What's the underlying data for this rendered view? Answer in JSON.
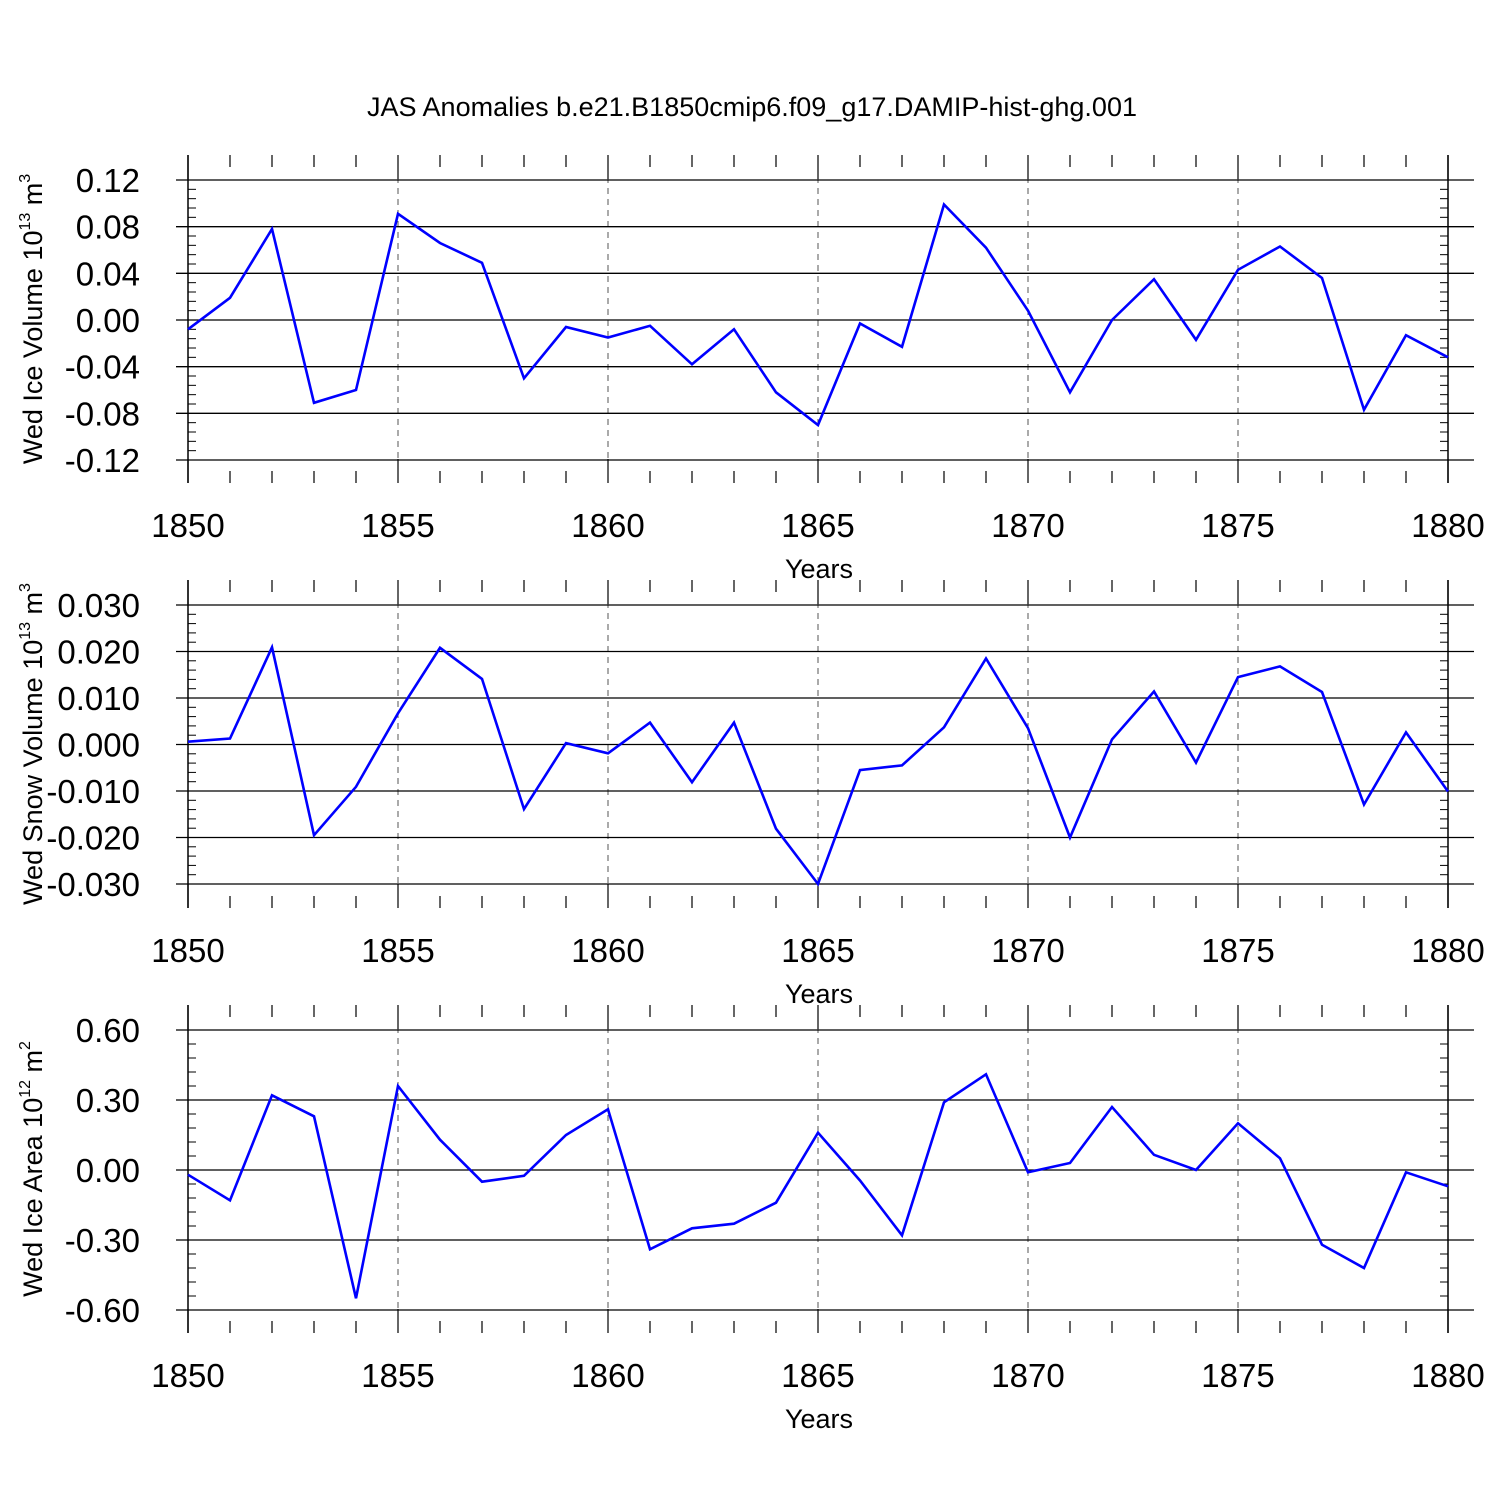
{
  "chart_data": {
    "type": "line",
    "title": "JAS Anomalies b.e21.B1850cmip6.f09_g17.DAMIP-hist-ghg.001",
    "line_color": "#0000ff",
    "panels": [
      {
        "type": "line",
        "ylabel_base": "Wed Ice Volume 10",
        "ylabel_exp": "13",
        "ylabel_unit": " m",
        "ylabel_unit_exp": "3",
        "xlabel": "Years",
        "xlim": [
          1850,
          1880
        ],
        "ylim": [
          -0.12,
          0.12
        ],
        "yticks": [
          -0.12,
          -0.08,
          -0.04,
          0.0,
          0.04,
          0.08,
          0.12
        ],
        "ytick_labels": [
          "-0.12",
          "-0.08",
          "-0.04",
          "0.00",
          "0.04",
          "0.08",
          "0.12"
        ],
        "xticks": [
          1850,
          1855,
          1860,
          1865,
          1870,
          1875,
          1880
        ],
        "xtick_labels": [
          "1850",
          "1855",
          "1860",
          "1865",
          "1870",
          "1875",
          "1880"
        ],
        "x": [
          1850,
          1851,
          1852,
          1853,
          1854,
          1855,
          1856,
          1857,
          1858,
          1859,
          1860,
          1861,
          1862,
          1863,
          1864,
          1865,
          1866,
          1867,
          1868,
          1869,
          1870,
          1871,
          1872,
          1873,
          1874,
          1875,
          1876,
          1877,
          1878,
          1879,
          1880
        ],
        "values": [
          -0.008,
          0.019,
          0.078,
          -0.071,
          -0.06,
          0.091,
          0.066,
          0.049,
          -0.05,
          -0.006,
          -0.015,
          -0.005,
          -0.038,
          -0.008,
          -0.062,
          -0.09,
          -0.003,
          -0.023,
          0.099,
          0.062,
          0.008,
          -0.062,
          0.0,
          0.035,
          -0.017,
          0.043,
          0.063,
          0.036,
          -0.077,
          -0.013,
          -0.032
        ]
      },
      {
        "type": "line",
        "ylabel_base": "Wed Snow Volume 10",
        "ylabel_exp": "13",
        "ylabel_unit": " m",
        "ylabel_unit_exp": "3",
        "xlabel": "Years",
        "xlim": [
          1850,
          1880
        ],
        "ylim": [
          -0.03,
          0.03
        ],
        "yticks": [
          -0.03,
          -0.02,
          -0.01,
          0.0,
          0.01,
          0.02,
          0.03
        ],
        "ytick_labels": [
          "-0.030",
          "-0.020",
          "-0.010",
          "0.000",
          "0.010",
          "0.020",
          "0.030"
        ],
        "xticks": [
          1850,
          1855,
          1860,
          1865,
          1870,
          1875,
          1880
        ],
        "xtick_labels": [
          "1850",
          "1855",
          "1860",
          "1865",
          "1870",
          "1875",
          "1880"
        ],
        "x": [
          1850,
          1851,
          1852,
          1853,
          1854,
          1855,
          1856,
          1857,
          1858,
          1859,
          1860,
          1861,
          1862,
          1863,
          1864,
          1865,
          1866,
          1867,
          1868,
          1869,
          1870,
          1871,
          1872,
          1873,
          1874,
          1875,
          1876,
          1877,
          1878,
          1879,
          1880
        ],
        "values": [
          0.0006,
          0.0013,
          0.0209,
          -0.0195,
          -0.0091,
          0.0067,
          0.0208,
          0.0141,
          -0.0139,
          0.0003,
          -0.0019,
          0.0047,
          -0.0081,
          0.0047,
          -0.0181,
          -0.03,
          -0.0055,
          -0.0045,
          0.0037,
          0.0185,
          0.0035,
          -0.02,
          0.0011,
          0.0114,
          -0.0039,
          0.0145,
          0.0168,
          0.0113,
          -0.0129,
          0.0026,
          -0.0101
        ]
      },
      {
        "type": "line",
        "ylabel_base": "Wed Ice Area 10",
        "ylabel_exp": "12",
        "ylabel_unit": " m",
        "ylabel_unit_exp": "2",
        "xlabel": "Years",
        "xlim": [
          1850,
          1880
        ],
        "ylim": [
          -0.6,
          0.6
        ],
        "yticks": [
          -0.6,
          -0.3,
          0.0,
          0.3,
          0.6
        ],
        "ytick_labels": [
          "-0.60",
          "-0.30",
          "0.00",
          "0.30",
          "0.60"
        ],
        "xticks": [
          1850,
          1855,
          1860,
          1865,
          1870,
          1875,
          1880
        ],
        "xtick_labels": [
          "1850",
          "1855",
          "1860",
          "1865",
          "1870",
          "1875",
          "1880"
        ],
        "x": [
          1850,
          1851,
          1852,
          1853,
          1854,
          1855,
          1856,
          1857,
          1858,
          1859,
          1860,
          1861,
          1862,
          1863,
          1864,
          1865,
          1866,
          1867,
          1868,
          1869,
          1870,
          1871,
          1872,
          1873,
          1874,
          1875,
          1876,
          1877,
          1878,
          1879,
          1880
        ],
        "values": [
          -0.02,
          -0.13,
          0.32,
          0.23,
          -0.55,
          0.36,
          0.13,
          -0.05,
          -0.025,
          0.15,
          0.26,
          -0.34,
          -0.25,
          -0.23,
          -0.14,
          0.16,
          -0.045,
          -0.28,
          0.29,
          0.41,
          -0.01,
          0.03,
          0.27,
          0.065,
          0.0,
          0.2,
          0.05,
          -0.32,
          -0.42,
          -0.01,
          -0.07
        ]
      }
    ]
  }
}
